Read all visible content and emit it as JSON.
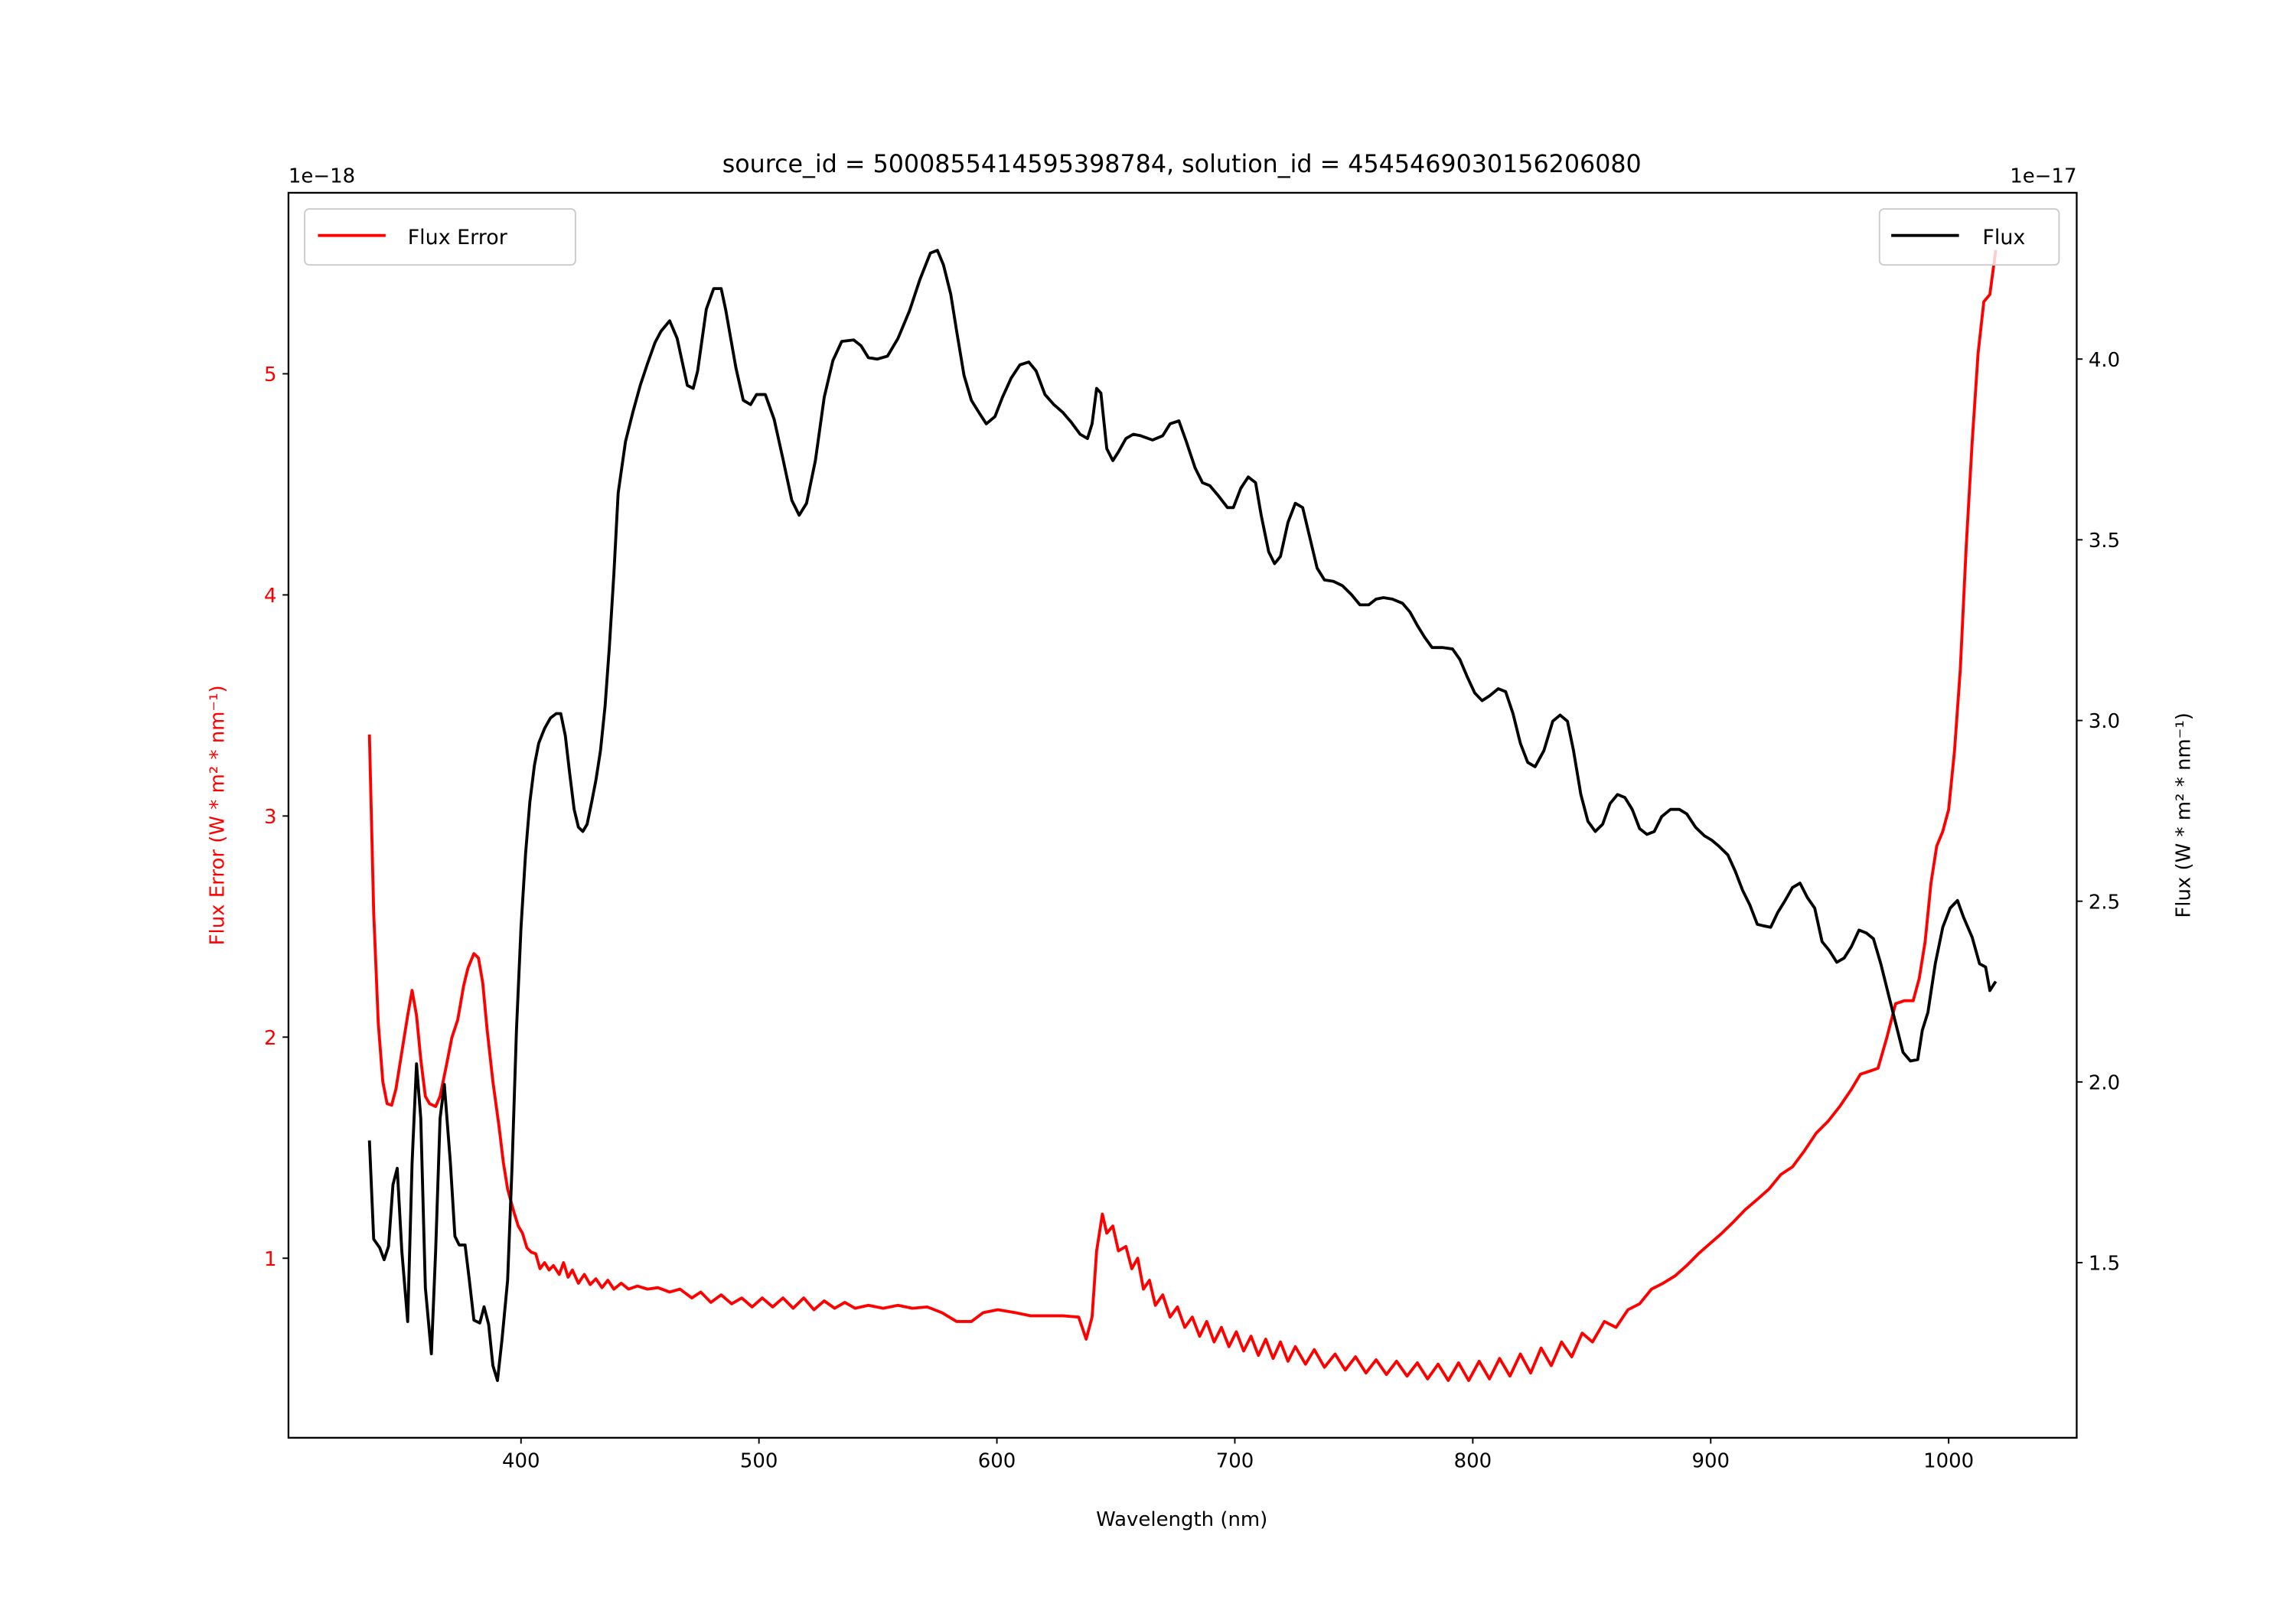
{
  "chart_data": {
    "type": "line",
    "title": "source_id = 5000855414595398784, solution_id = 4545469030156206080",
    "xlabel": "Wavelength (nm)",
    "xlim": [
      301,
      1053
    ],
    "xticks": [
      400,
      500,
      600,
      700,
      800,
      900,
      1000
    ],
    "left_axis": {
      "label": "Flux Error (W * m² * nm⁻¹)",
      "offset_text": "1e−18",
      "ylim": [
        0.0,
        5.81
      ],
      "ylim_shown": [
        0.15,
        5.81
      ],
      "ticks": [
        1,
        2,
        3,
        4,
        5
      ],
      "color": "#ff0000"
    },
    "right_axis": {
      "label": "Flux (W * m² * nm⁻¹)",
      "offset_text": "1e−17",
      "ylim": [
        1.04,
        4.45
      ],
      "ticks": [
        "1.5",
        "2.0",
        "2.5",
        "3.0",
        "3.5",
        "4.0"
      ],
      "color": "#000000"
    },
    "grid": false,
    "legends": [
      {
        "label": "Flux Error",
        "color": "#ff0000",
        "placement": "upper-left"
      },
      {
        "label": "Flux",
        "color": "#000000",
        "placement": "upper-right"
      }
    ],
    "series": [
      {
        "name": "Flux Error",
        "axis": "left",
        "color": "#ff0000",
        "x": [
          336.3,
          338.1,
          340.0,
          341.9,
          343.7,
          345.6,
          347.4,
          349.9,
          352.4,
          354.2,
          356.1,
          357.9,
          359.8,
          361.6,
          364.1,
          366.0,
          368.5,
          370.9,
          373.4,
          375.9,
          377.7,
          380.2,
          382.1,
          383.9,
          385.8,
          388.2,
          390.7,
          392.6,
          394.4,
          396.9,
          398.8,
          400.6,
          402.5,
          404.3,
          406.2,
          408.0,
          409.9,
          411.8,
          413.6,
          416.1,
          417.9,
          419.8,
          421.6,
          424.1,
          426.6,
          429.1,
          431.5,
          434.0,
          436.5,
          439.0,
          442.1,
          445.2,
          448.9,
          453.2,
          457.5,
          462.5,
          466.8,
          471.8,
          475.5,
          479.8,
          484.1,
          488.5,
          492.8,
          497.1,
          501.4,
          505.8,
          510.1,
          514.4,
          518.8,
          523.1,
          527.4,
          531.8,
          536.1,
          540.4,
          546.0,
          552.2,
          558.4,
          564.5,
          570.7,
          576.9,
          583.1,
          589.3,
          594.2,
          600.4,
          607.8,
          614.0,
          621.4,
          627.6,
          634.4,
          637.5,
          640.0,
          641.9,
          644.3,
          646.2,
          648.7,
          651.1,
          654.2,
          656.7,
          659.2,
          661.6,
          664.1,
          666.6,
          669.7,
          672.8,
          675.9,
          679.0,
          682.1,
          685.2,
          688.2,
          691.3,
          694.4,
          697.5,
          700.6,
          703.7,
          706.8,
          709.9,
          713.0,
          716.1,
          719.2,
          722.3,
          725.4,
          729.7,
          733.4,
          737.7,
          742.1,
          746.4,
          750.7,
          755.1,
          759.4,
          763.7,
          768.0,
          772.4,
          776.7,
          781.0,
          785.4,
          789.7,
          794.0,
          798.3,
          802.7,
          807.0,
          811.3,
          815.6,
          820.0,
          824.3,
          828.7,
          833.0,
          837.3,
          841.6,
          846.0,
          850.3,
          855.3,
          860.2,
          865.2,
          870.1,
          875.1,
          880.0,
          885.0,
          889.9,
          894.8,
          899.8,
          904.7,
          909.7,
          914.6,
          919.6,
          924.5,
          929.5,
          934.4,
          939.4,
          944.3,
          949.3,
          954.2,
          959.2,
          962.9,
          966.6,
          970.3,
          974.0,
          977.7,
          981.4,
          985.1,
          987.6,
          990.1,
          992.6,
          995.0,
          997.5,
          1000.0,
          1002.5,
          1004.9,
          1007.4,
          1009.9,
          1012.4,
          1014.8,
          1017.3,
          1019.8
        ],
        "y": [
          3.369,
          2.564,
          2.065,
          1.799,
          1.699,
          1.692,
          1.765,
          1.932,
          2.098,
          2.211,
          2.098,
          1.899,
          1.732,
          1.699,
          1.686,
          1.732,
          1.865,
          1.998,
          2.078,
          2.231,
          2.311,
          2.378,
          2.358,
          2.245,
          2.032,
          1.799,
          1.599,
          1.433,
          1.313,
          1.213,
          1.146,
          1.113,
          1.047,
          1.027,
          1.02,
          0.953,
          0.98,
          0.947,
          0.967,
          0.927,
          0.98,
          0.914,
          0.947,
          0.887,
          0.927,
          0.881,
          0.907,
          0.867,
          0.9,
          0.86,
          0.887,
          0.86,
          0.874,
          0.86,
          0.867,
          0.847,
          0.86,
          0.82,
          0.847,
          0.8,
          0.834,
          0.794,
          0.82,
          0.78,
          0.82,
          0.78,
          0.82,
          0.774,
          0.82,
          0.767,
          0.807,
          0.774,
          0.8,
          0.774,
          0.787,
          0.774,
          0.787,
          0.774,
          0.78,
          0.754,
          0.714,
          0.714,
          0.754,
          0.767,
          0.754,
          0.74,
          0.74,
          0.74,
          0.734,
          0.634,
          0.734,
          1.033,
          1.2,
          1.113,
          1.146,
          1.033,
          1.053,
          0.953,
          1.0,
          0.86,
          0.9,
          0.787,
          0.834,
          0.734,
          0.78,
          0.687,
          0.734,
          0.647,
          0.714,
          0.621,
          0.687,
          0.6,
          0.667,
          0.581,
          0.647,
          0.561,
          0.634,
          0.547,
          0.621,
          0.534,
          0.6,
          0.521,
          0.587,
          0.507,
          0.567,
          0.494,
          0.554,
          0.481,
          0.541,
          0.474,
          0.534,
          0.467,
          0.527,
          0.454,
          0.521,
          0.447,
          0.527,
          0.447,
          0.534,
          0.454,
          0.547,
          0.467,
          0.567,
          0.481,
          0.594,
          0.514,
          0.621,
          0.554,
          0.661,
          0.621,
          0.714,
          0.687,
          0.767,
          0.794,
          0.86,
          0.887,
          0.92,
          0.967,
          1.02,
          1.067,
          1.113,
          1.166,
          1.22,
          1.266,
          1.313,
          1.379,
          1.413,
          1.486,
          1.566,
          1.619,
          1.686,
          1.765,
          1.832,
          1.845,
          1.859,
          1.998,
          2.151,
          2.165,
          2.165,
          2.265,
          2.431,
          2.697,
          2.864,
          2.93,
          3.03,
          3.296,
          3.662,
          4.228,
          4.694,
          5.093,
          5.326,
          5.359,
          5.559
        ]
      },
      {
        "name": "Flux",
        "axis": "right",
        "color": "#000000",
        "x": [
          336.3,
          338.1,
          340.6,
          342.5,
          344.3,
          346.2,
          348.0,
          349.9,
          352.4,
          354.2,
          356.1,
          357.9,
          359.8,
          362.3,
          364.1,
          366.0,
          367.8,
          370.3,
          372.2,
          374.0,
          376.5,
          378.3,
          380.2,
          382.7,
          384.5,
          386.4,
          388.2,
          390.1,
          392.0,
          394.4,
          396.3,
          398.1,
          400.0,
          401.9,
          403.7,
          405.6,
          407.4,
          409.9,
          412.4,
          414.8,
          416.7,
          418.6,
          420.4,
          422.3,
          424.1,
          426.0,
          427.8,
          429.7,
          431.5,
          433.4,
          435.3,
          437.1,
          439.0,
          440.8,
          443.9,
          447.0,
          450.1,
          453.2,
          456.3,
          458.8,
          462.5,
          465.6,
          469.9,
          472.4,
          474.2,
          477.9,
          481.0,
          484.1,
          486.0,
          490.3,
          493.4,
          496.5,
          499.0,
          502.7,
          506.4,
          510.1,
          513.8,
          516.9,
          520.0,
          523.7,
          527.4,
          531.1,
          534.8,
          539.8,
          542.9,
          546.0,
          549.7,
          554.0,
          558.4,
          563.3,
          567.6,
          572.0,
          575.0,
          577.5,
          580.6,
          583.1,
          586.2,
          589.3,
          592.4,
          595.5,
          599.2,
          602.3,
          606.0,
          609.7,
          613.4,
          616.5,
          620.2,
          623.9,
          627.6,
          631.3,
          635.0,
          638.1,
          640.0,
          641.9,
          643.7,
          646.2,
          648.7,
          651.1,
          654.2,
          657.3,
          660.4,
          665.4,
          669.7,
          672.8,
          676.5,
          679.6,
          683.3,
          686.4,
          689.5,
          693.2,
          696.9,
          699.4,
          702.5,
          705.6,
          708.7,
          711.1,
          714.2,
          716.7,
          719.2,
          722.3,
          725.4,
          728.5,
          731.5,
          734.6,
          737.7,
          741.4,
          745.2,
          748.9,
          752.6,
          756.3,
          759.4,
          762.5,
          766.2,
          770.5,
          773.6,
          776.7,
          779.8,
          782.9,
          787.2,
          791.5,
          794.6,
          797.7,
          800.8,
          803.9,
          807.0,
          810.7,
          813.8,
          816.9,
          820.0,
          823.1,
          826.2,
          829.9,
          833.6,
          836.7,
          839.8,
          842.3,
          845.4,
          848.4,
          851.5,
          854.6,
          857.7,
          860.8,
          863.9,
          867.0,
          870.1,
          873.2,
          876.3,
          879.4,
          883.1,
          886.8,
          889.9,
          893.6,
          897.3,
          900.4,
          903.5,
          907.2,
          910.3,
          913.4,
          916.5,
          919.6,
          922.1,
          925.2,
          928.2,
          931.3,
          934.4,
          937.5,
          940.6,
          943.7,
          946.8,
          949.9,
          953.0,
          956.1,
          959.2,
          962.3,
          965.4,
          968.4,
          971.5,
          974.6,
          977.7,
          980.8,
          983.9,
          987.0,
          988.9,
          991.3,
          994.4,
          997.5,
          1000.6,
          1003.7,
          1006.2,
          1009.9,
          1013.0,
          1015.5,
          1017.3,
          1019.8
        ],
        "y": [
          1.838,
          1.565,
          1.541,
          1.508,
          1.545,
          1.716,
          1.761,
          1.533,
          1.337,
          1.777,
          2.05,
          1.899,
          1.431,
          1.248,
          1.533,
          1.899,
          1.993,
          1.777,
          1.573,
          1.549,
          1.549,
          1.451,
          1.341,
          1.333,
          1.378,
          1.329,
          1.215,
          1.174,
          1.288,
          1.451,
          1.777,
          2.143,
          2.428,
          2.632,
          2.774,
          2.876,
          2.937,
          2.978,
          3.007,
          3.019,
          3.019,
          2.958,
          2.856,
          2.754,
          2.705,
          2.693,
          2.713,
          2.774,
          2.835,
          2.917,
          3.039,
          3.202,
          3.406,
          3.629,
          3.772,
          3.853,
          3.927,
          3.988,
          4.045,
          4.077,
          4.106,
          4.057,
          3.927,
          3.919,
          3.967,
          4.138,
          4.195,
          4.195,
          4.138,
          3.976,
          3.886,
          3.874,
          3.902,
          3.902,
          3.833,
          3.723,
          3.609,
          3.568,
          3.601,
          3.719,
          3.894,
          3.996,
          4.049,
          4.053,
          4.037,
          4.004,
          4.0,
          4.008,
          4.057,
          4.134,
          4.22,
          4.293,
          4.301,
          4.261,
          4.179,
          4.077,
          3.955,
          3.886,
          3.853,
          3.821,
          3.841,
          3.894,
          3.947,
          3.984,
          3.992,
          3.967,
          3.902,
          3.874,
          3.853,
          3.825,
          3.792,
          3.78,
          3.821,
          3.919,
          3.906,
          3.752,
          3.719,
          3.743,
          3.78,
          3.792,
          3.788,
          3.776,
          3.788,
          3.821,
          3.829,
          3.772,
          3.699,
          3.658,
          3.65,
          3.621,
          3.589,
          3.589,
          3.642,
          3.674,
          3.658,
          3.568,
          3.467,
          3.434,
          3.454,
          3.548,
          3.601,
          3.589,
          3.507,
          3.422,
          3.389,
          3.385,
          3.373,
          3.349,
          3.32,
          3.32,
          3.336,
          3.34,
          3.336,
          3.324,
          3.3,
          3.263,
          3.23,
          3.202,
          3.202,
          3.198,
          3.169,
          3.121,
          3.076,
          3.055,
          3.068,
          3.088,
          3.08,
          3.019,
          2.937,
          2.884,
          2.872,
          2.917,
          2.998,
          3.015,
          2.998,
          2.917,
          2.795,
          2.721,
          2.693,
          2.713,
          2.77,
          2.795,
          2.787,
          2.754,
          2.701,
          2.685,
          2.693,
          2.734,
          2.754,
          2.754,
          2.742,
          2.705,
          2.681,
          2.669,
          2.652,
          2.628,
          2.583,
          2.53,
          2.489,
          2.436,
          2.432,
          2.428,
          2.469,
          2.502,
          2.538,
          2.55,
          2.51,
          2.481,
          2.388,
          2.363,
          2.331,
          2.343,
          2.375,
          2.42,
          2.412,
          2.396,
          2.327,
          2.245,
          2.164,
          2.082,
          2.058,
          2.062,
          2.143,
          2.192,
          2.327,
          2.428,
          2.481,
          2.502,
          2.457,
          2.4,
          2.327,
          2.318,
          2.253,
          2.278
        ]
      }
    ]
  }
}
